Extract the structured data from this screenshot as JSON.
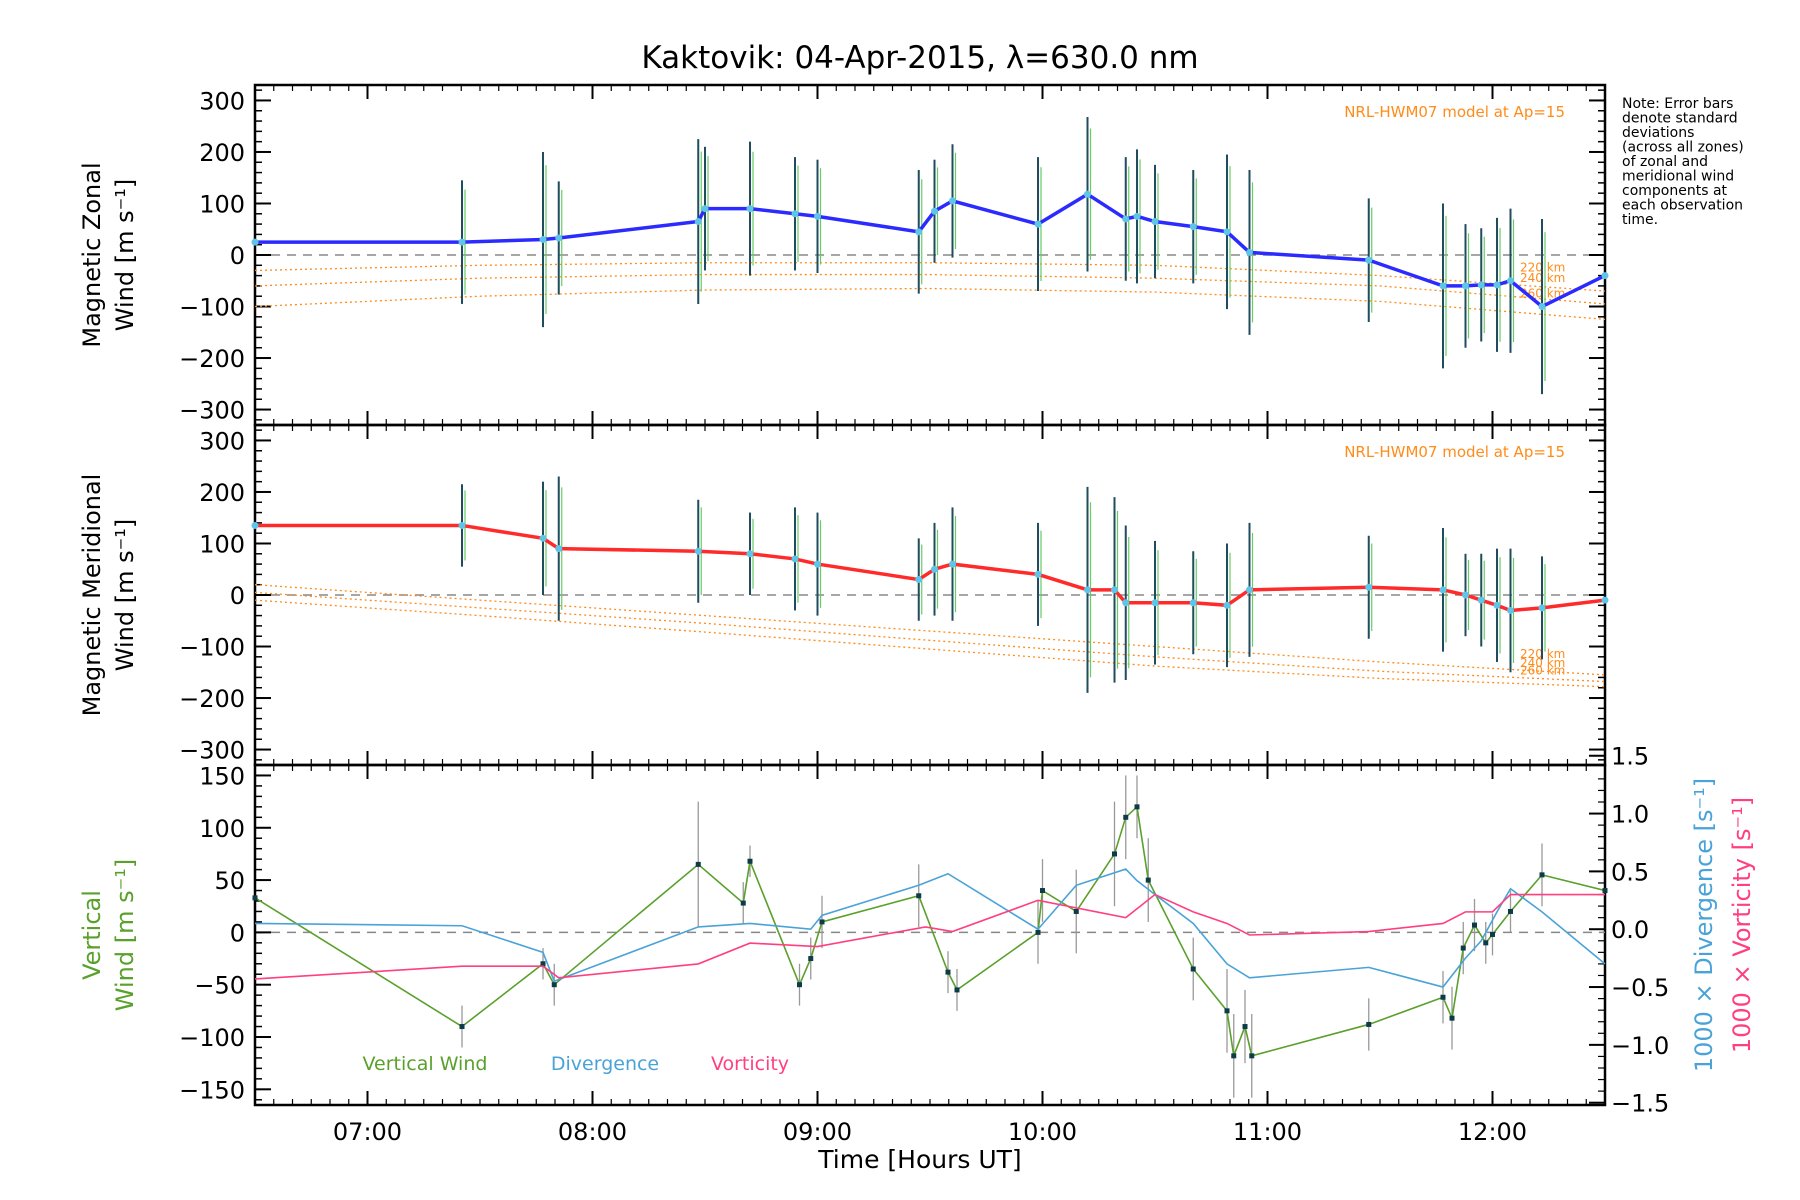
{
  "figure": {
    "title": "Kaktovik: 04-Apr-2015, λ=630.0 nm",
    "note": [
      "Note: Error bars",
      "denote standard",
      "deviations",
      "(across all zones)",
      "of zonal and",
      "meridional wind",
      "components at",
      "each observation",
      "time."
    ],
    "xlabel": "Time [Hours UT]",
    "x_ticks": [
      "07:00",
      "08:00",
      "09:00",
      "10:00",
      "11:00",
      "12:00"
    ],
    "colors": {
      "zonal": "#2b2bff",
      "meridional": "#ff2b2b",
      "vertical": "#5aa02c",
      "divergence": "#4aa3d8",
      "vorticity": "#ff3f7f",
      "model": "#ff8c1a",
      "zero_line": "#888888"
    }
  },
  "chart_data": [
    {
      "type": "line",
      "panel": "zonal",
      "ylabel": [
        "Magnetic Zonal",
        "Wind [m s⁻¹]"
      ],
      "ylim": [
        -330,
        330
      ],
      "xlim": [
        6.5,
        12.5
      ],
      "y_ticks": [
        "300",
        "200",
        "100",
        "0",
        "−100",
        "−200",
        "−300"
      ],
      "y_tick_values": [
        300,
        200,
        100,
        0,
        -100,
        -200,
        -300
      ],
      "annotation": "NRL-HWM07 model at Ap=15",
      "model_labels": [
        "220 km",
        "240 km",
        "260 km"
      ],
      "model_series": [
        {
          "x": [
            6.5,
            7.5,
            8.5,
            9.5,
            10.5,
            11.5,
            12.5
          ],
          "y": [
            -30,
            -20,
            -15,
            -15,
            -20,
            -40,
            -70
          ]
        },
        {
          "x": [
            6.5,
            7.5,
            8.5,
            9.5,
            10.5,
            11.5,
            12.5
          ],
          "y": [
            -60,
            -45,
            -38,
            -38,
            -45,
            -60,
            -95
          ]
        },
        {
          "x": [
            6.5,
            7.5,
            8.5,
            9.5,
            10.5,
            11.5,
            12.5
          ],
          "y": [
            -100,
            -80,
            -68,
            -65,
            -72,
            -90,
            -125
          ]
        }
      ],
      "series": [
        {
          "x": [
            6.5,
            7.42,
            7.78,
            7.85,
            8.47,
            8.5,
            8.7,
            8.9,
            9.0,
            9.45,
            9.52,
            9.6,
            9.98,
            10.2,
            10.37,
            10.42,
            10.5,
            10.67,
            10.82,
            10.92,
            11.45,
            11.78,
            11.88,
            11.95,
            12.02,
            12.08,
            12.22,
            12.5
          ],
          "y": [
            25,
            25,
            30,
            33,
            65,
            90,
            90,
            80,
            75,
            45,
            85,
            105,
            60,
            118,
            70,
            75,
            65,
            55,
            45,
            5,
            -10,
            -60,
            -60,
            -58,
            -58,
            -50,
            -100,
            -40
          ],
          "err": [
            0,
            120,
            170,
            110,
            160,
            120,
            130,
            110,
            110,
            120,
            100,
            110,
            130,
            150,
            120,
            130,
            110,
            110,
            150,
            160,
            120,
            160,
            120,
            110,
            130,
            140,
            170,
            0
          ]
        }
      ]
    },
    {
      "type": "line",
      "panel": "meridional",
      "ylabel": [
        "Magnetic Meridional",
        "Wind [m s⁻¹]"
      ],
      "ylim": [
        -330,
        330
      ],
      "xlim": [
        6.5,
        12.5
      ],
      "y_ticks": [
        "300",
        "200",
        "100",
        "0",
        "−100",
        "−200",
        "−300"
      ],
      "y_tick_values": [
        300,
        200,
        100,
        0,
        -100,
        -200,
        -300
      ],
      "annotation": "NRL-HWM07 model at Ap=15",
      "model_labels": [
        "220 km",
        "240 km",
        "260 km"
      ],
      "model_series": [
        {
          "x": [
            6.5,
            7.5,
            8.5,
            9.5,
            10.5,
            11.5,
            12.5
          ],
          "y": [
            20,
            -10,
            -40,
            -70,
            -100,
            -130,
            -155
          ]
        },
        {
          "x": [
            6.5,
            7.5,
            8.5,
            9.5,
            10.5,
            11.5,
            12.5
          ],
          "y": [
            5,
            -25,
            -55,
            -88,
            -120,
            -148,
            -168
          ]
        },
        {
          "x": [
            6.5,
            7.5,
            8.5,
            9.5,
            10.5,
            11.5,
            12.5
          ],
          "y": [
            -10,
            -40,
            -72,
            -105,
            -138,
            -162,
            -178
          ]
        }
      ],
      "series": [
        {
          "x": [
            6.5,
            7.42,
            7.78,
            7.85,
            8.47,
            8.7,
            8.9,
            9.0,
            9.45,
            9.52,
            9.6,
            9.98,
            10.2,
            10.32,
            10.37,
            10.5,
            10.67,
            10.82,
            10.92,
            11.45,
            11.78,
            11.88,
            11.95,
            12.02,
            12.08,
            12.22,
            12.5
          ],
          "y": [
            135,
            135,
            110,
            90,
            85,
            80,
            70,
            60,
            30,
            50,
            60,
            40,
            10,
            10,
            -15,
            -15,
            -15,
            -20,
            10,
            15,
            10,
            0,
            -10,
            -20,
            -30,
            -25,
            -10
          ],
          "err": [
            0,
            80,
            110,
            140,
            100,
            80,
            100,
            100,
            80,
            90,
            110,
            100,
            200,
            180,
            150,
            120,
            100,
            120,
            130,
            100,
            120,
            80,
            90,
            110,
            120,
            100,
            0
          ]
        }
      ]
    },
    {
      "type": "line",
      "panel": "vertical",
      "ylabel": [
        "Vertical",
        "Wind [m s⁻¹]"
      ],
      "ylim": [
        -165,
        160
      ],
      "xlim": [
        6.5,
        12.5
      ],
      "y_ticks": [
        "150",
        "100",
        "50",
        "0",
        "−50",
        "−100",
        "−150"
      ],
      "y_tick_values": [
        150,
        100,
        50,
        0,
        -50,
        -100,
        -150
      ],
      "y2label_div": "1000 × Divergence [s⁻¹]",
      "y2label_vor": "1000 × Vorticity [s⁻¹]",
      "y2lim": [
        -1.52,
        1.42
      ],
      "y2_ticks": [
        "1.5",
        "1.0",
        "0.5",
        "0.0",
        "−0.5",
        "−1.0",
        "−1.5"
      ],
      "y2_tick_values": [
        1.5,
        1.0,
        0.5,
        0.0,
        -0.5,
        -1.0,
        -1.5
      ],
      "legend": [
        "Vertical Wind",
        "Divergence",
        "Vorticity"
      ],
      "series": [
        {
          "name": "Vertical Wind",
          "axis": "left",
          "x": [
            6.5,
            7.42,
            7.78,
            7.83,
            8.47,
            8.67,
            8.7,
            8.92,
            8.97,
            9.02,
            9.45,
            9.58,
            9.62,
            9.98,
            10.0,
            10.15,
            10.32,
            10.37,
            10.42,
            10.47,
            10.67,
            10.82,
            10.85,
            10.9,
            10.93,
            11.45,
            11.78,
            11.82,
            11.87,
            11.92,
            11.97,
            12.0,
            12.08,
            12.22,
            12.5
          ],
          "y": [
            33,
            -90,
            -30,
            -50,
            65,
            28,
            68,
            -50,
            -25,
            10,
            35,
            -38,
            -55,
            0,
            40,
            20,
            75,
            110,
            120,
            50,
            -35,
            -75,
            -118,
            -90,
            -118,
            -88,
            -62,
            -82,
            -15,
            7,
            -10,
            -2,
            20,
            55,
            40
          ],
          "err": [
            0,
            20,
            15,
            20,
            60,
            20,
            15,
            20,
            20,
            25,
            30,
            20,
            20,
            30,
            30,
            40,
            50,
            40,
            30,
            40,
            30,
            40,
            40,
            35,
            40,
            25,
            25,
            30,
            25,
            25,
            20,
            20,
            20,
            30,
            0
          ]
        },
        {
          "name": "Divergence",
          "axis": "right",
          "x": [
            6.5,
            7.42,
            7.78,
            7.83,
            8.47,
            8.7,
            8.97,
            9.02,
            9.45,
            9.58,
            9.98,
            10.15,
            10.37,
            10.42,
            10.5,
            10.67,
            10.82,
            10.92,
            11.45,
            11.78,
            11.88,
            11.95,
            12.02,
            12.08,
            12.22,
            12.5
          ],
          "y": [
            0.05,
            0.03,
            -0.2,
            -0.45,
            0.02,
            0.05,
            0.0,
            0.12,
            0.38,
            0.48,
            0.0,
            0.38,
            0.52,
            0.42,
            0.3,
            0.05,
            -0.3,
            -0.42,
            -0.33,
            -0.5,
            -0.25,
            -0.1,
            0.15,
            0.35,
            0.15,
            -0.3
          ]
        },
        {
          "name": "Vorticity",
          "axis": "right",
          "x": [
            6.5,
            7.42,
            7.78,
            7.85,
            8.47,
            8.7,
            9.0,
            9.48,
            9.6,
            9.98,
            10.37,
            10.5,
            10.67,
            10.82,
            10.92,
            11.45,
            11.78,
            11.88,
            12.0,
            12.08,
            12.22,
            12.5
          ],
          "y": [
            -0.43,
            -0.32,
            -0.32,
            -0.42,
            -0.3,
            -0.12,
            -0.15,
            0.02,
            -0.02,
            0.25,
            0.1,
            0.3,
            0.15,
            0.05,
            -0.05,
            -0.02,
            0.05,
            0.15,
            0.15,
            0.3,
            0.3,
            0.3
          ]
        }
      ]
    }
  ]
}
